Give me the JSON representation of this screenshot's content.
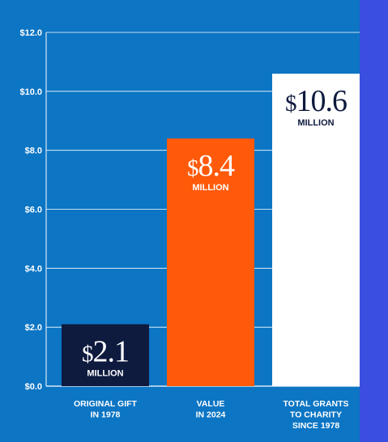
{
  "colors": {
    "panel_background": "#0c75c4",
    "outer_border": "#3a4fe0",
    "axis_text": "#ffffff",
    "grid": "#ffffff"
  },
  "chart_data": {
    "type": "bar",
    "categories": [
      [
        "ORIGINAL GIFT",
        "IN 1978"
      ],
      [
        "VALUE",
        "IN 2024"
      ],
      [
        "TOTAL GRANTS",
        "TO CHARITY",
        "SINCE 1978"
      ]
    ],
    "values": [
      2.1,
      8.4,
      10.6
    ],
    "bar_colors": [
      "#0e1a3e",
      "#ff5a0a",
      "#ffffff"
    ],
    "value_labels": [
      {
        "currency": "$",
        "number": "2.1",
        "unit": "MILLION",
        "color": "#ffffff"
      },
      {
        "currency": "$",
        "number": "8.4",
        "unit": "MILLION",
        "color": "#ffffff"
      },
      {
        "currency": "$",
        "number": "10.6",
        "unit": "MILLION",
        "color": "#0e1a3e"
      }
    ],
    "y_ticks": [
      "$0.0",
      "$2.0",
      "$4.0",
      "$6.0",
      "$8.0",
      "$10.0",
      "$12.0"
    ],
    "ylim": [
      0,
      12
    ],
    "grid": true,
    "title": "",
    "xlabel": "",
    "ylabel": ""
  }
}
